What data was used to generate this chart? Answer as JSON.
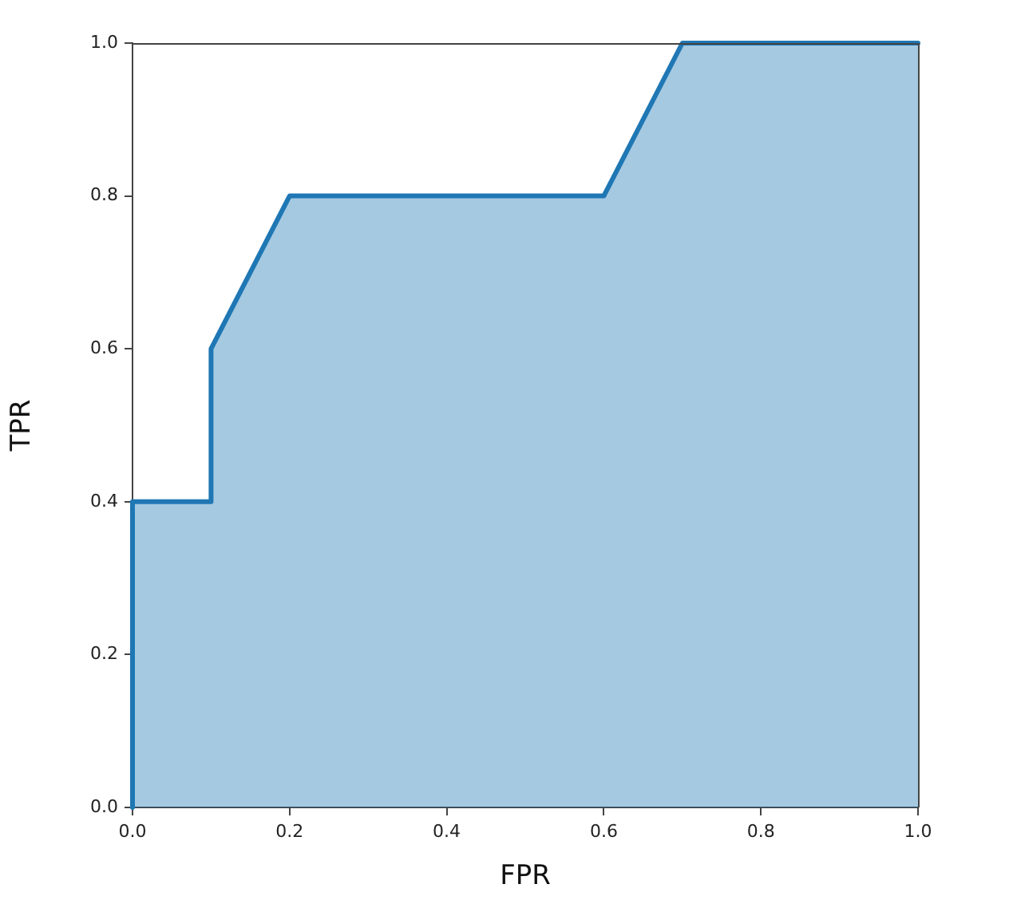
{
  "chart_data": {
    "type": "area",
    "xlabel": "FPR",
    "ylabel": "TPR",
    "x": [
      0,
      0,
      0.1,
      0.1,
      0.2,
      0.6,
      0.7,
      1.0
    ],
    "series": [
      {
        "color": "#1f77b4",
        "values": [
          0,
          0.4,
          0.4,
          0.6,
          0.8,
          0.8,
          1.0,
          1.0
        ]
      }
    ],
    "xlim": [
      0,
      1
    ],
    "ylim": [
      0,
      1
    ],
    "xticks": [
      {
        "value": 0,
        "label": "0.0"
      },
      0.2,
      0.4,
      0.6,
      0.8,
      {
        "value": 1,
        "label": "1.0"
      }
    ],
    "yticks": [
      {
        "value": 0,
        "label": "0.0"
      },
      0.2,
      0.4,
      0.6,
      0.8,
      {
        "value": 1,
        "label": "1.0"
      }
    ],
    "grid": false
  }
}
